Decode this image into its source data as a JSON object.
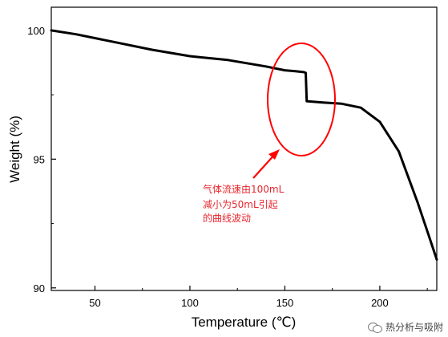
{
  "chart_data": {
    "type": "line",
    "xlabel": "Temperature (℃)",
    "ylabel": "Weight (%)",
    "xlim": [
      27,
      230
    ],
    "ylim": [
      89.9,
      100.9
    ],
    "x_ticks": [
      50,
      100,
      150,
      200
    ],
    "y_ticks": [
      90,
      95,
      100
    ],
    "series": [
      {
        "color": "#000000",
        "points": [
          [
            27,
            100.0
          ],
          [
            40,
            99.85
          ],
          [
            60,
            99.55
          ],
          [
            80,
            99.25
          ],
          [
            100,
            99.0
          ],
          [
            120,
            98.85
          ],
          [
            140,
            98.6
          ],
          [
            150,
            98.45
          ],
          [
            155,
            98.42
          ],
          [
            160,
            98.38
          ],
          [
            161,
            98.35
          ],
          [
            161.5,
            97.25
          ],
          [
            170,
            97.2
          ],
          [
            180,
            97.15
          ],
          [
            190,
            97.0
          ],
          [
            200,
            96.45
          ],
          [
            210,
            95.3
          ],
          [
            220,
            93.3
          ],
          [
            225,
            92.2
          ],
          [
            230,
            91.1
          ]
        ]
      }
    ],
    "annotation": {
      "lines": [
        "气体流速由100mL",
        "减小为50mL引起",
        "的曲线波动"
      ],
      "color": "#e8262d"
    },
    "grid": false
  },
  "watermark": {
    "text": "热分析与吸附",
    "icon": "wechat-icon"
  }
}
